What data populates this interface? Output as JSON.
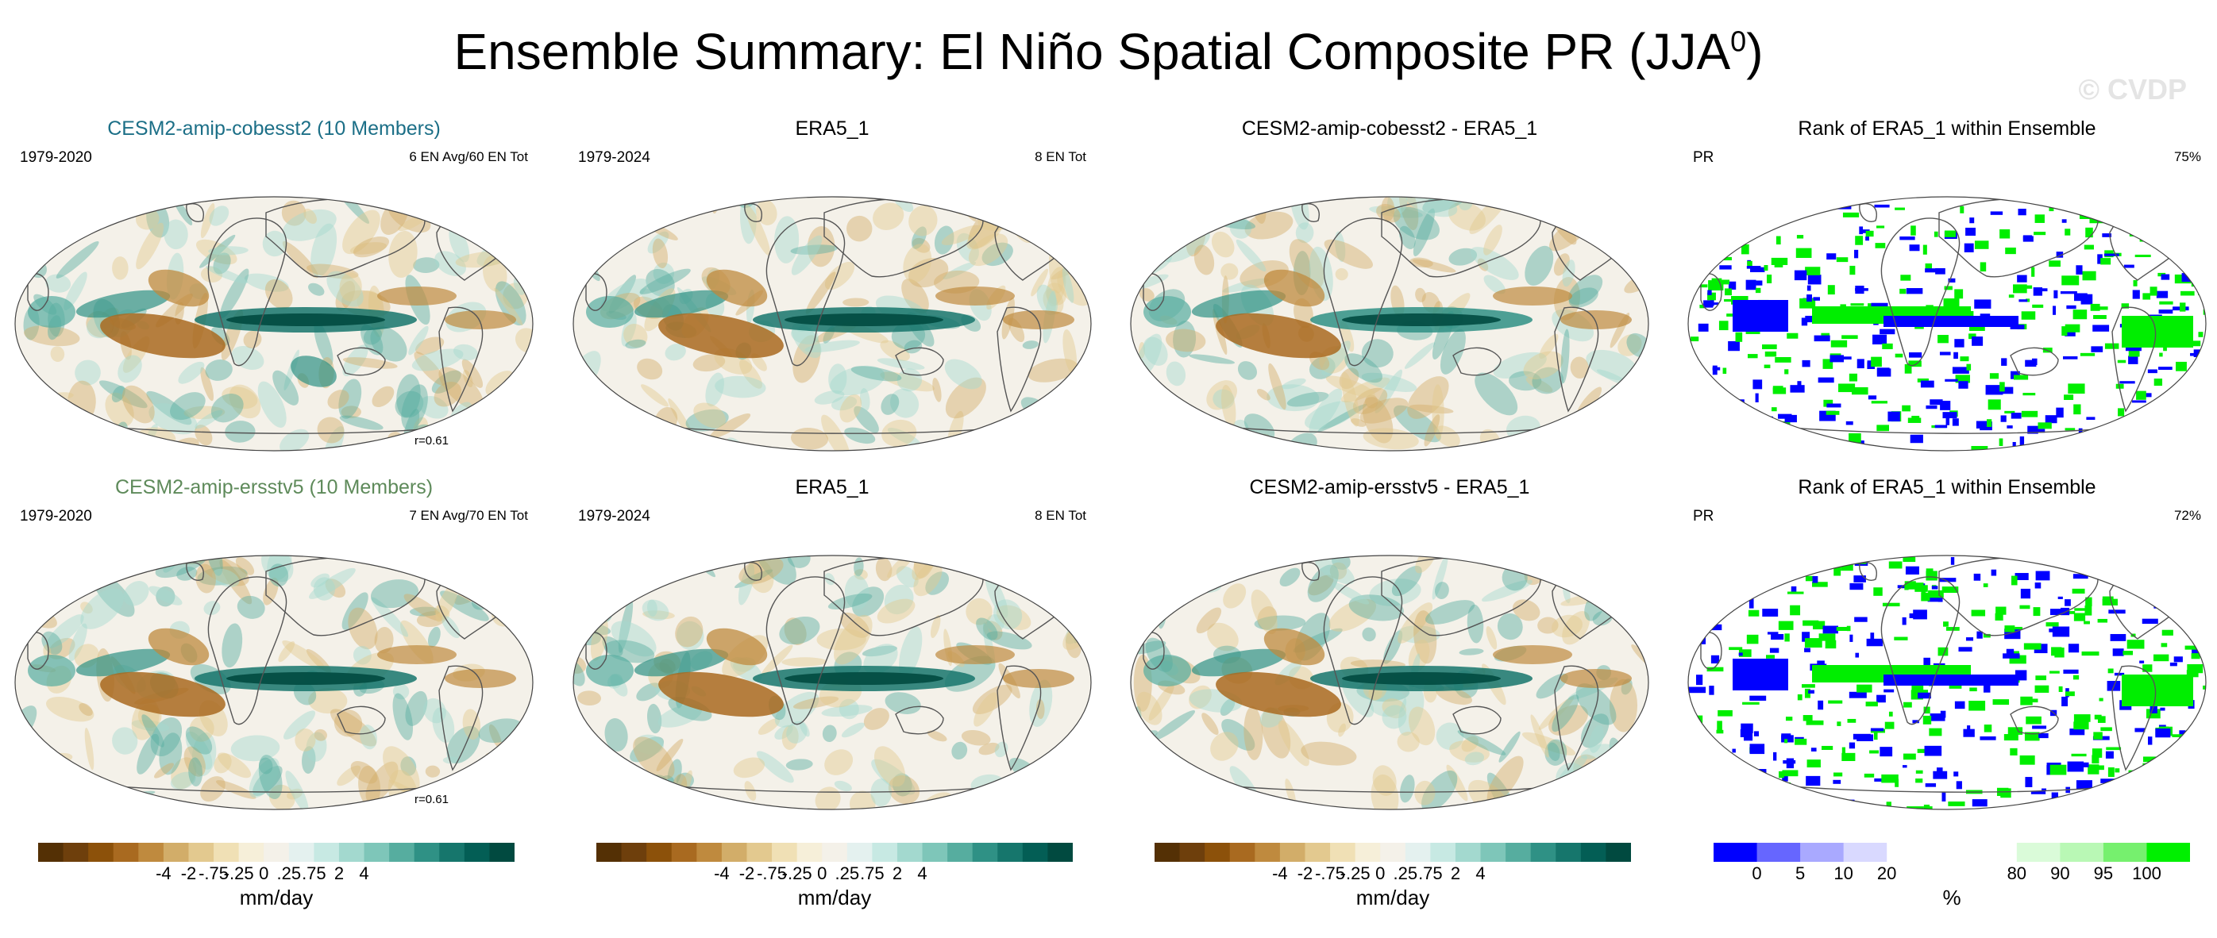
{
  "figure": {
    "title": "Ensemble Summary: El Niño Spatial Composite PR (JJA",
    "title_sup": "0",
    "title_end": ")",
    "watermark": "© CVDP"
  },
  "rows": [
    {
      "panels": [
        {
          "title": "CESM2-amip-cobesst2 (10 Members)",
          "title_color": "#1c6f87",
          "left_label": "1979-2020",
          "right_label": "6 EN Avg/60 EN Tot",
          "bottom_label": "r=0.61",
          "kind": "diverging"
        },
        {
          "title": "ERA5_1",
          "title_color": "#000000",
          "left_label": "1979-2024",
          "right_label": "8 EN Tot",
          "bottom_label": "",
          "kind": "diverging"
        },
        {
          "title": "CESM2-amip-cobesst2 - ERA5_1",
          "title_color": "#000000",
          "left_label": "",
          "right_label": "",
          "bottom_label": "",
          "kind": "diverging"
        },
        {
          "title": "Rank of ERA5_1 within Ensemble",
          "title_color": "#000000",
          "left_label": "PR",
          "right_label": "75%",
          "bottom_label": "",
          "kind": "rank"
        }
      ]
    },
    {
      "panels": [
        {
          "title": "CESM2-amip-ersstv5 (10 Members)",
          "title_color": "#5e8a5a",
          "left_label": "1979-2020",
          "right_label": "7 EN Avg/70 EN Tot",
          "bottom_label": "r=0.61",
          "kind": "diverging"
        },
        {
          "title": "ERA5_1",
          "title_color": "#000000",
          "left_label": "1979-2024",
          "right_label": "8 EN Tot",
          "bottom_label": "",
          "kind": "diverging"
        },
        {
          "title": "CESM2-amip-ersstv5 - ERA5_1",
          "title_color": "#000000",
          "left_label": "",
          "right_label": "",
          "bottom_label": "",
          "kind": "diverging"
        },
        {
          "title": "Rank of ERA5_1 within Ensemble",
          "title_color": "#000000",
          "left_label": "PR",
          "right_label": "72%",
          "bottom_label": "",
          "kind": "rank"
        }
      ]
    }
  ],
  "colorbars": [
    {
      "kind": "diverging",
      "unit": "mm/day",
      "colors": [
        "#543005",
        "#6e3f0c",
        "#8c510a",
        "#a96a20",
        "#bf8a3e",
        "#d2ad69",
        "#e3c98f",
        "#f0e0b5",
        "#f6efd9",
        "#f4f1e9",
        "#e4f1ef",
        "#c7e9e3",
        "#a3d9cf",
        "#7ec6b9",
        "#56ad9f",
        "#2f9185",
        "#16766c",
        "#035e55",
        "#014a40"
      ],
      "ticks": [
        "-4",
        "-2",
        "-.75",
        "-.25",
        "0",
        ".25",
        ".75",
        "2",
        "4"
      ]
    },
    {
      "kind": "rank",
      "unit": "%",
      "colors": [
        "#0000ff",
        "#6666ff",
        "#a9a9ff",
        "#d9d9ff",
        "#ffffff",
        "#ffffff",
        "#ffffff",
        "#dafbd9",
        "#b9f8b5",
        "#76f06e",
        "#00f000"
      ],
      "ticks": [
        "0",
        "5",
        "10",
        "20",
        "80",
        "90",
        "95",
        "100"
      ]
    }
  ],
  "colors": {
    "land_outline": "#555555",
    "rank_low": "#0000ff",
    "rank_high": "#00ee00"
  }
}
